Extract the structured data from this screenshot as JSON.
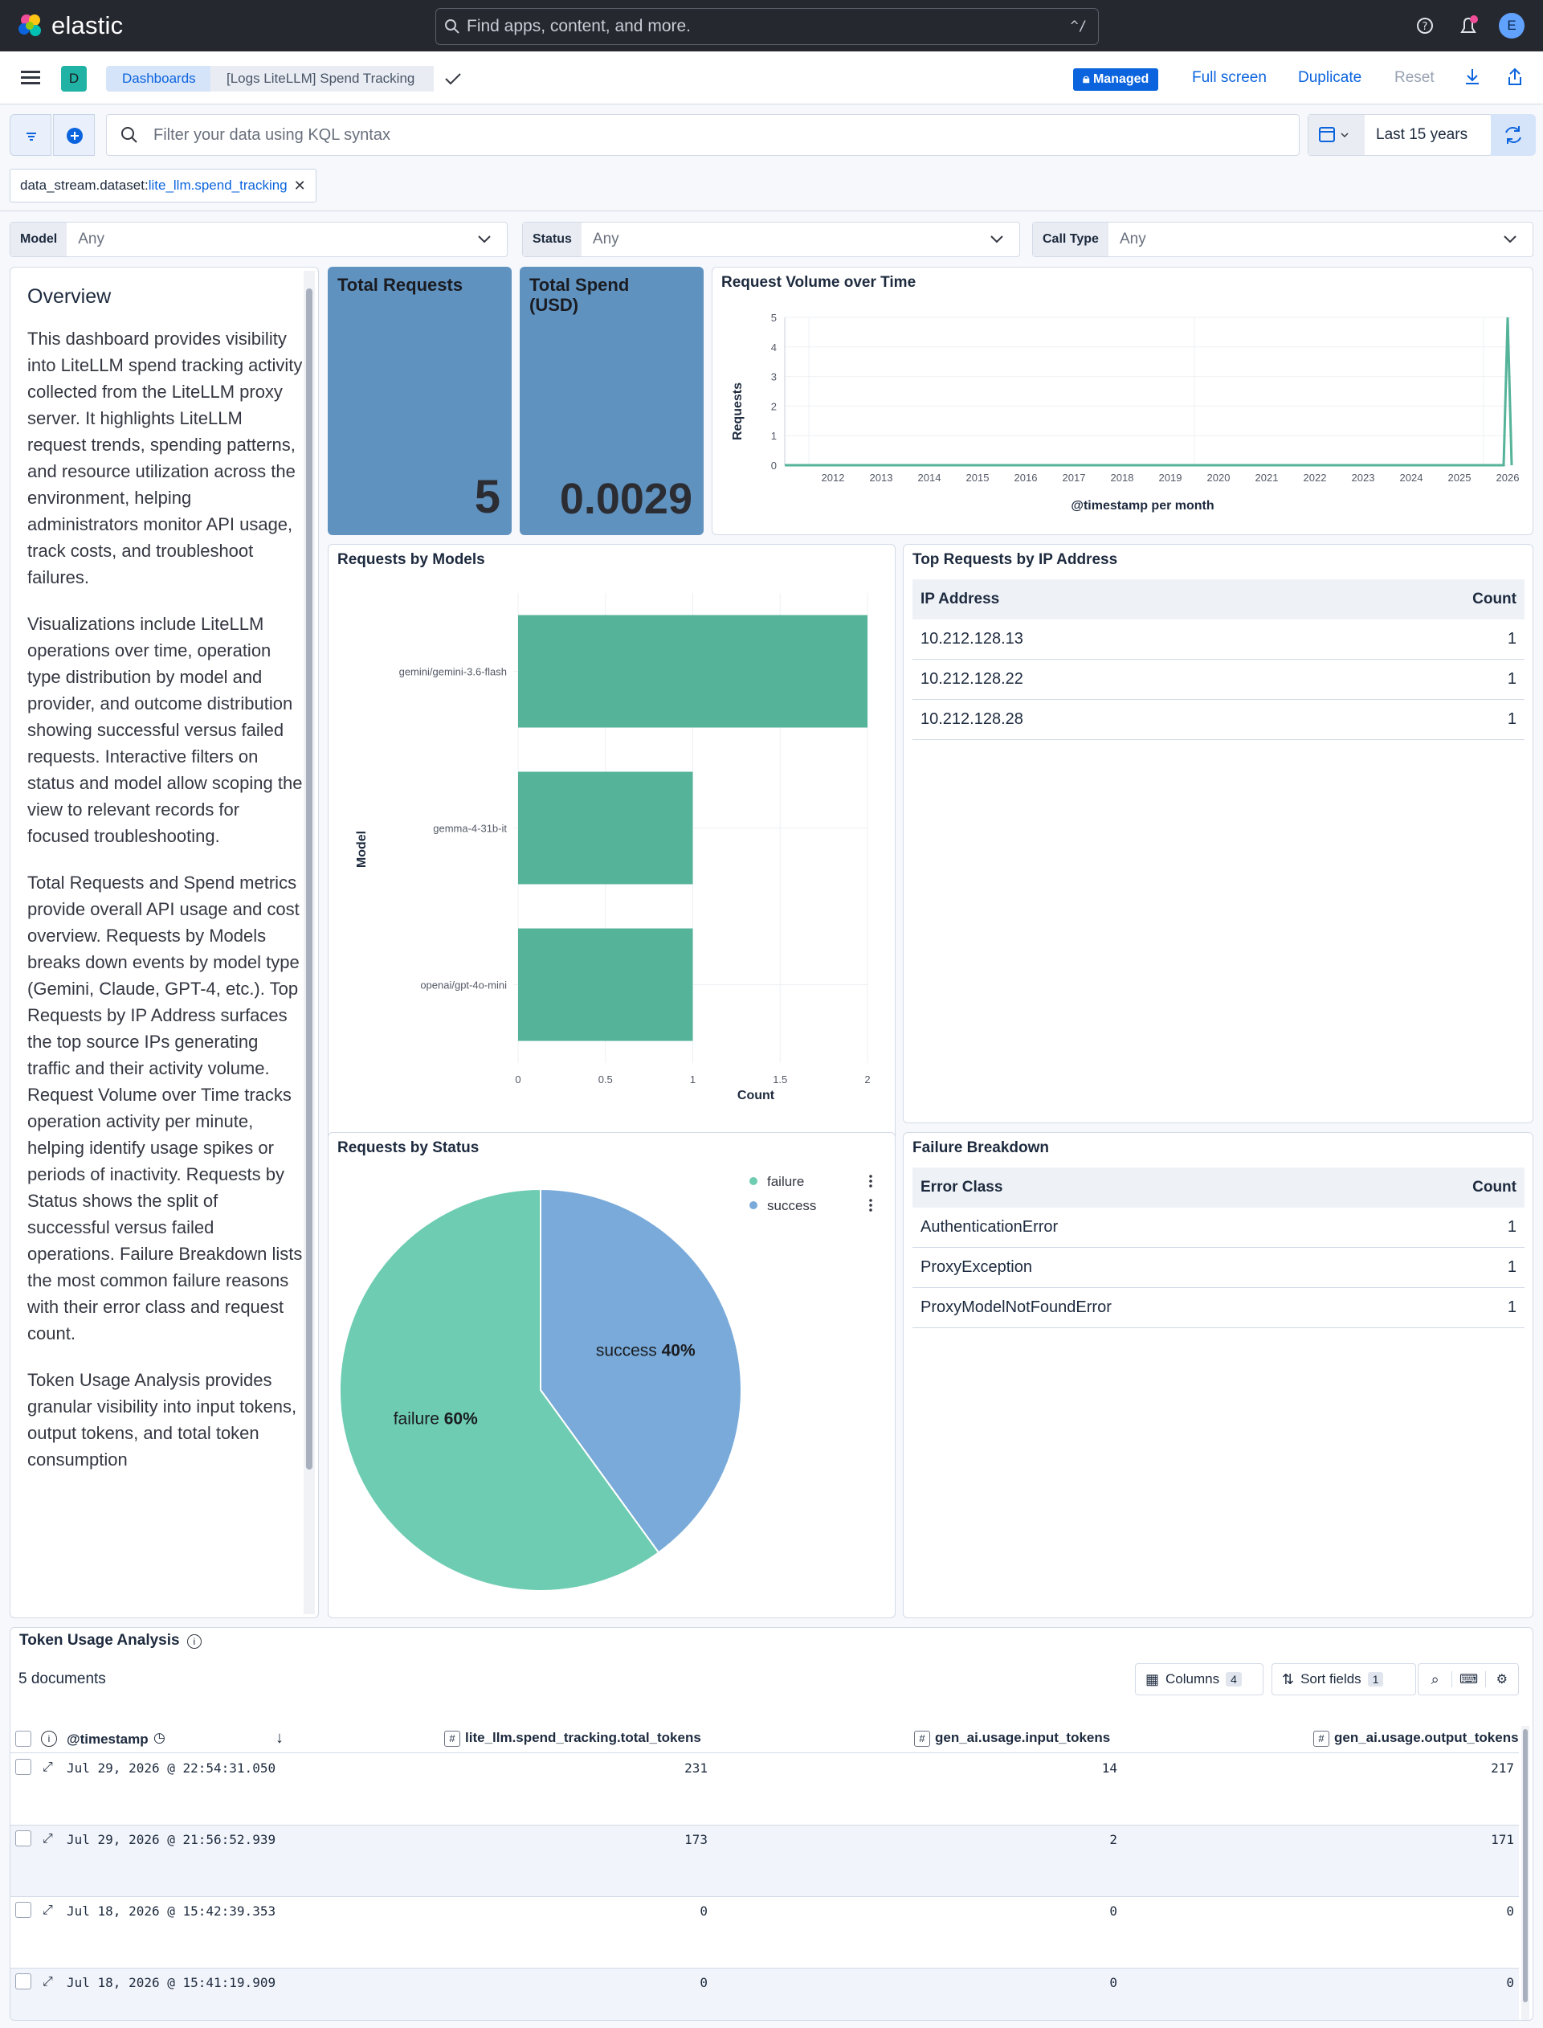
{
  "topbar": {
    "brand": "elastic",
    "search_placeholder": "Find apps, content, and more.",
    "search_shortcut": "^/",
    "avatar_initial": "E",
    "icons": [
      "help-icon",
      "notifications-icon"
    ]
  },
  "header": {
    "space_badge": "D",
    "breadcrumbs": [
      "Dashboards",
      "[Logs LiteLLM] Spend Tracking"
    ],
    "managed_label": "Managed",
    "full_screen_label": "Full screen",
    "duplicate_label": "Duplicate",
    "reset_label": "Reset"
  },
  "query": {
    "kql_placeholder": "Filter your data using KQL syntax",
    "time_range": "Last 15 years"
  },
  "filter_pill": {
    "field": "data_stream.dataset: ",
    "value": "lite_llm.spend_tracking"
  },
  "controls": [
    {
      "label": "Model",
      "value": "Any"
    },
    {
      "label": "Status",
      "value": "Any"
    },
    {
      "label": "Call Type",
      "value": "Any"
    }
  ],
  "overview": {
    "title": "Overview",
    "paragraphs": [
      "This dashboard provides visibility into LiteLLM spend tracking activity collected from the LiteLLM proxy server. It highlights LiteLLM request trends, spending patterns, and resource utilization across the environment, helping administrators monitor API usage, track costs, and troubleshoot failures.",
      "Visualizations include LiteLLM operations over time, operation type distribution by model and provider, and outcome distribution showing successful versus failed requests. Interactive filters on status and model allow scoping the view to relevant records for focused troubleshooting.",
      "Total Requests and Spend metrics provide overall API usage and cost overview. Requests by Models breaks down events by model type (Gemini, Claude, GPT-4, etc.). Top Requests by IP Address surfaces the top source IPs generating traffic and their activity volume. Request Volume over Time tracks operation activity per minute, helping identify usage spikes or periods of inactivity. Requests by Status shows the split of successful versus failed operations. Failure Breakdown lists the most common failure reasons with their error class and request count.",
      "Token Usage Analysis provides granular visibility into input tokens, output tokens, and total token consumption"
    ]
  },
  "metrics": {
    "total_requests": {
      "title": "Total Requests",
      "value": "5"
    },
    "total_spend": {
      "title": "Total Spend (USD)",
      "value": "0.0029"
    }
  },
  "volume_chart": {
    "title": "Request Volume over Time",
    "ylabel": "Requests",
    "xlabel": "@timestamp per month"
  },
  "models_chart": {
    "title": "Requests by Models",
    "ylabel": "Model",
    "xlabel": "Count"
  },
  "status_chart": {
    "title": "Requests by Status"
  },
  "chart_data": [
    {
      "type": "line",
      "title": "Request Volume over Time",
      "xlabel": "@timestamp per month",
      "ylabel": "Requests",
      "x_ticks": [
        "2012",
        "2013",
        "2014",
        "2015",
        "2016",
        "2017",
        "2018",
        "2019",
        "2020",
        "2021",
        "2022",
        "2023",
        "2024",
        "2025",
        "2026"
      ],
      "y_ticks": [
        0,
        1,
        2,
        3,
        4,
        5
      ],
      "ylim": [
        0,
        5
      ],
      "xlim": [
        "2011-07",
        "2026-08"
      ],
      "series": [
        {
          "x": [
            "2026-05",
            "2026-06",
            "2026-07",
            "2026-08"
          ],
          "y": [
            0,
            0,
            5,
            0
          ]
        }
      ],
      "color": "#54b399",
      "grid": true
    },
    {
      "type": "bar",
      "orientation": "horizontal",
      "title": "Requests by Models",
      "xlabel": "Count",
      "ylabel": "Model",
      "categories": [
        "gemini/gemini-3.6-flash",
        "gemma-4-31b-it",
        "openai/gpt-4o-mini"
      ],
      "values": [
        2,
        1,
        1
      ],
      "x_ticks": [
        "0",
        "0.5",
        "1",
        "1.5",
        "2"
      ],
      "xlim": [
        0,
        2
      ],
      "color": "#54b399",
      "grid": true
    },
    {
      "type": "pie",
      "title": "Requests by Status",
      "categories": [
        "failure",
        "success"
      ],
      "values": [
        60,
        40
      ],
      "labels": [
        {
          "name": "failure",
          "pct": "60%"
        },
        {
          "name": "success",
          "pct": "40%"
        }
      ],
      "colors": [
        "#6dccb1",
        "#79aad9"
      ],
      "legend": "top-right"
    }
  ],
  "ip_table": {
    "title": "Top Requests by IP Address",
    "headers": [
      "IP Address",
      "Count"
    ],
    "rows": [
      [
        "10.212.128.13",
        "1"
      ],
      [
        "10.212.128.22",
        "1"
      ],
      [
        "10.212.128.28",
        "1"
      ]
    ]
  },
  "failure_table": {
    "title": "Failure Breakdown",
    "headers": [
      "Error Class",
      "Count"
    ],
    "rows": [
      [
        "AuthenticationError",
        "1"
      ],
      [
        "ProxyException",
        "1"
      ],
      [
        "ProxyModelNotFoundError",
        "1"
      ]
    ]
  },
  "token_usage": {
    "title": "Token Usage Analysis",
    "doc_count": "5 documents",
    "columns_label": "Columns",
    "columns_count": "4",
    "sort_label": "Sort fields",
    "sort_count": "1",
    "headers": [
      "@timestamp",
      "lite_llm.spend_tracking.total_tokens",
      "gen_ai.usage.input_tokens",
      "gen_ai.usage.output_tokens"
    ],
    "rows": [
      [
        "Jul 29, 2026 @ 22:54:31.050",
        "231",
        "14",
        "217"
      ],
      [
        "Jul 29, 2026 @ 21:56:52.939",
        "173",
        "2",
        "171"
      ],
      [
        "Jul 18, 2026 @ 15:42:39.353",
        "0",
        "0",
        "0"
      ],
      [
        "Jul 18, 2026 @ 15:41:19.909",
        "0",
        "0",
        "0"
      ]
    ]
  },
  "colors": {
    "accent": "#0b64dd",
    "metric_bg": "#6092c0",
    "series": "#54b399"
  }
}
